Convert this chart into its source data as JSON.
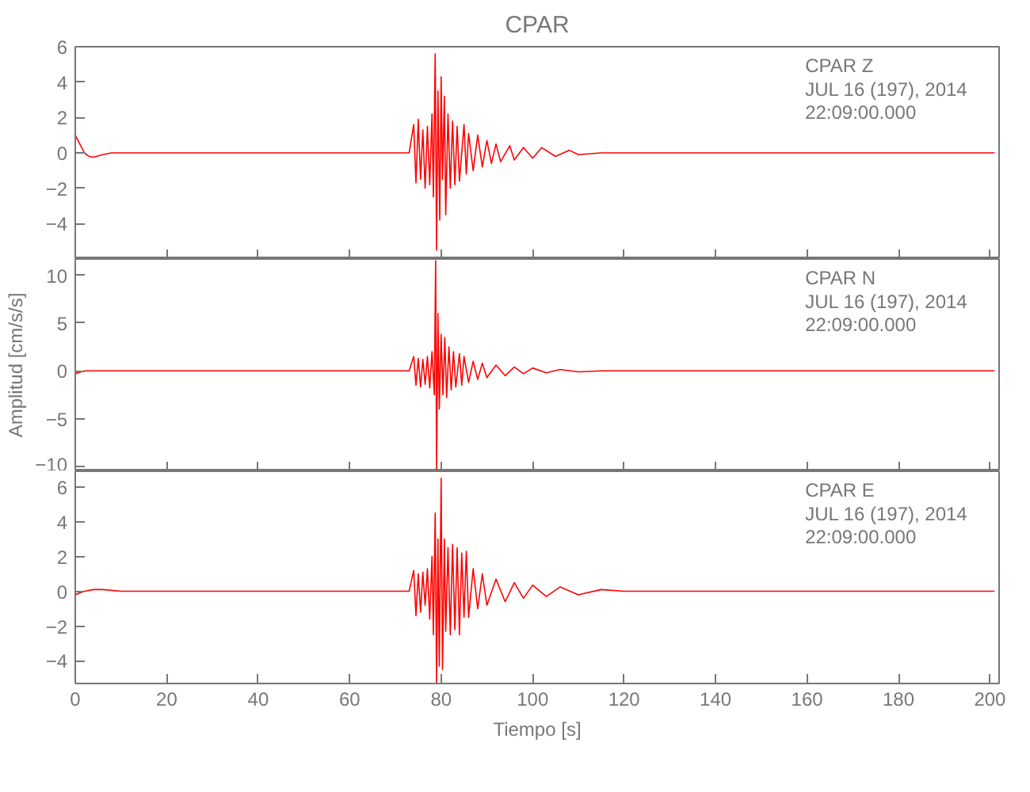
{
  "chart_data": [
    {
      "type": "line",
      "title": "CPAR",
      "xlim": [
        0,
        202
      ],
      "ylim": [
        -6,
        6
      ],
      "xticks": [
        0,
        20,
        40,
        60,
        80,
        100,
        120,
        140,
        160,
        180,
        200
      ],
      "yticks": [
        -4,
        -2,
        0,
        2,
        4,
        6
      ],
      "tick_labels": "y",
      "annotations": [
        "CPAR   Z",
        "JUL 16 (197), 2014",
        "22:09:00.000"
      ],
      "series": [
        {
          "color": "#ff0000",
          "x": [
            0,
            1,
            2,
            3,
            4,
            6,
            8,
            20,
            40,
            60,
            73,
            74,
            74.5,
            75,
            75.5,
            76,
            76.5,
            77,
            77.5,
            78,
            78.3,
            78.7,
            79,
            79.3,
            79.7,
            80,
            80.3,
            80.7,
            81,
            81.5,
            82,
            82.5,
            83,
            83.5,
            84,
            85,
            85.5,
            86,
            87,
            88,
            89,
            90,
            91,
            92,
            93,
            95,
            96,
            98,
            100,
            102,
            105,
            108,
            110,
            115,
            140,
            170,
            201
          ],
          "values": [
            1.0,
            0.5,
            0,
            -0.2,
            -0.25,
            -0.1,
            0,
            0,
            0,
            0,
            0,
            1.6,
            -1.7,
            1.9,
            -1.5,
            1.3,
            -2,
            1.5,
            -1.8,
            2.2,
            -2.5,
            5.6,
            -5.5,
            3.5,
            -3.8,
            4.3,
            -1.5,
            3.2,
            -3.5,
            2.2,
            -2,
            1.8,
            -1.8,
            1.5,
            -1.6,
            1.6,
            -1.2,
            1.1,
            -1,
            1,
            -0.8,
            0.7,
            -0.6,
            0.5,
            -0.5,
            0.4,
            -0.4,
            0.3,
            -0.3,
            0.3,
            -0.2,
            0.15,
            -0.1,
            0,
            0,
            0,
            0
          ]
        }
      ]
    },
    {
      "type": "line",
      "ylabel": "Amplitud [cm/s/s]",
      "xlim": [
        0,
        202
      ],
      "ylim": [
        -10.5,
        11.7
      ],
      "xticks": [
        0,
        20,
        40,
        60,
        80,
        100,
        120,
        140,
        160,
        180,
        200
      ],
      "yticks": [
        -10,
        -5,
        0,
        5,
        10
      ],
      "tick_labels": "y",
      "annotations": [
        "CPAR   N",
        "JUL 16 (197), 2014",
        "22:09:00.000"
      ],
      "series": [
        {
          "color": "#ff0000",
          "x": [
            0,
            2,
            20,
            40,
            60,
            73,
            74,
            74.5,
            75,
            75.5,
            76,
            76.5,
            77,
            77.5,
            78,
            78.5,
            78.8,
            79,
            79.3,
            79.6,
            80,
            80.4,
            80.8,
            81.2,
            81.7,
            82.2,
            82.7,
            83.2,
            84,
            84.5,
            85,
            86,
            87,
            88,
            89,
            90,
            92,
            94,
            96,
            98,
            100,
            103,
            106,
            110,
            115,
            140,
            170,
            201
          ],
          "values": [
            -0.3,
            0,
            0,
            0,
            0,
            0,
            1.5,
            -1.5,
            1.3,
            -1.7,
            1.2,
            -1.4,
            1.5,
            -1.8,
            2,
            -2.5,
            11.5,
            -10.3,
            6,
            -4,
            3.8,
            -2.5,
            3.5,
            -2.8,
            2.5,
            -2,
            2,
            -1.7,
            1.8,
            -1.5,
            1.5,
            -1.2,
            1,
            -0.9,
            0.8,
            -0.7,
            0.6,
            -0.5,
            0.4,
            -0.3,
            0.3,
            -0.2,
            0.15,
            -0.1,
            0,
            0,
            0,
            0
          ]
        }
      ]
    },
    {
      "type": "line",
      "xlabel": "Tiempo [s]",
      "xlim": [
        0,
        202
      ],
      "ylim": [
        -5.3,
        6.9
      ],
      "xticks": [
        0,
        20,
        40,
        60,
        80,
        100,
        120,
        140,
        160,
        180,
        200
      ],
      "yticks": [
        -4,
        -2,
        0,
        2,
        4,
        6
      ],
      "annotations": [
        "CPAR   E",
        "JUL 16 (197), 2014",
        "22:09:00.000"
      ],
      "series": [
        {
          "color": "#ff0000",
          "x": [
            0,
            2,
            4,
            6,
            10,
            20,
            40,
            60,
            73,
            74,
            74.5,
            75,
            75.5,
            76,
            76.5,
            77,
            77.5,
            78,
            78.3,
            78.7,
            79,
            79.3,
            79.6,
            80,
            80.3,
            80.7,
            81,
            81.5,
            82,
            82.5,
            83,
            83.5,
            84,
            84.5,
            85,
            85.5,
            86,
            87,
            88,
            89,
            90,
            92,
            94,
            96,
            98,
            100,
            103,
            106,
            110,
            115,
            120,
            150,
            180,
            201
          ],
          "values": [
            -0.2,
            0,
            0.1,
            0.1,
            0,
            0,
            0,
            0,
            0,
            1.2,
            -1.4,
            1,
            -1.2,
            1.1,
            -0.8,
            1.3,
            -1.6,
            2,
            -2.5,
            4.5,
            -5.3,
            3,
            -4.3,
            6.5,
            -4.5,
            3,
            -2.3,
            2.5,
            -2.5,
            2.7,
            -2.2,
            2.5,
            -2.5,
            2.2,
            -1.5,
            2.3,
            -1.5,
            1.3,
            -1,
            1,
            -0.8,
            0.7,
            -0.6,
            0.5,
            -0.4,
            0.35,
            -0.3,
            0.25,
            -0.2,
            0.1,
            0,
            0,
            0,
            0
          ]
        }
      ]
    }
  ]
}
